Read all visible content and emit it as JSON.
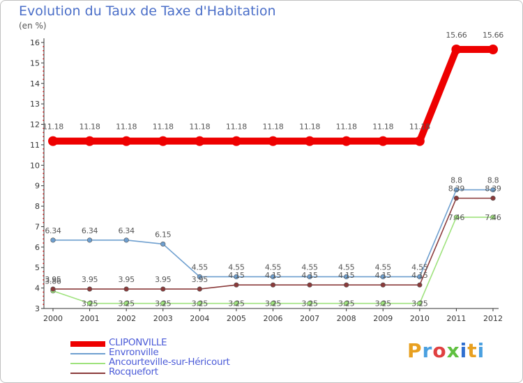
{
  "chart_data": {
    "type": "line",
    "title": "Evolution du Taux de Taxe d'Habitation",
    "unit_label": "(en %)",
    "x": [
      2000,
      2001,
      2002,
      2003,
      2004,
      2005,
      2006,
      2007,
      2008,
      2009,
      2010,
      2011,
      2012
    ],
    "ylim": [
      3,
      16
    ],
    "yticks": [
      3,
      4,
      5,
      6,
      7,
      8,
      9,
      10,
      11,
      12,
      13,
      14,
      15,
      16
    ],
    "grid": false,
    "legend_position": "bottom-left",
    "series": [
      {
        "name": "CLIPONVILLE",
        "color": "#ee0000",
        "values": [
          11.18,
          11.18,
          11.18,
          11.18,
          11.18,
          11.18,
          11.18,
          11.18,
          11.18,
          11.18,
          11.18,
          15.66,
          15.66
        ],
        "labels": [
          "11.18",
          "11.18",
          "11.18",
          "11.18",
          "11.18",
          "11.18",
          "11.18",
          "11.18",
          "11.18",
          "11.18",
          "11.18",
          "15.66",
          "15.66"
        ]
      },
      {
        "name": "Envronville",
        "color": "#6e9fcf",
        "values": [
          6.34,
          6.34,
          6.34,
          6.15,
          4.55,
          4.55,
          4.55,
          4.55,
          4.55,
          4.55,
          4.55,
          8.8,
          8.8
        ],
        "labels": [
          "6.34",
          "6.34",
          "6.34",
          "6.15",
          "4.55",
          "4.55",
          "4.55",
          "4.55",
          "4.55",
          "4.55",
          "4.55",
          "8.8",
          "8.8"
        ]
      },
      {
        "name": "Ancourteville-sur-Héricourt",
        "color": "#9ee27c",
        "values": [
          3.86,
          3.25,
          3.25,
          3.25,
          3.25,
          3.25,
          3.25,
          3.25,
          3.25,
          3.25,
          3.25,
          7.46,
          7.46
        ],
        "labels": [
          "3.86",
          "3.25",
          "3.25",
          "3.25",
          "3.25",
          "3.25",
          "3.25",
          "3.25",
          "3.25",
          "3.25",
          "3.25",
          "7.46",
          "7.46"
        ]
      },
      {
        "name": "Rocquefort",
        "color": "#8a3a3a",
        "values": [
          3.95,
          3.95,
          3.95,
          3.95,
          3.95,
          4.15,
          4.15,
          4.15,
          4.15,
          4.15,
          4.15,
          8.39,
          8.39
        ],
        "labels": [
          "3.95",
          "3.95",
          "3.95",
          "3.95",
          "3.95",
          "4.15",
          "4.15",
          "4.15",
          "4.15",
          "4.15",
          "4.15",
          "8.39",
          "8.39"
        ]
      }
    ]
  },
  "brand": {
    "name": "Proxiti",
    "letter_colors": [
      "#e8a020",
      "#4aa0e0",
      "#e04040",
      "#60c040",
      "#3070d0",
      "#e8a020",
      "#4aa0e0"
    ]
  }
}
